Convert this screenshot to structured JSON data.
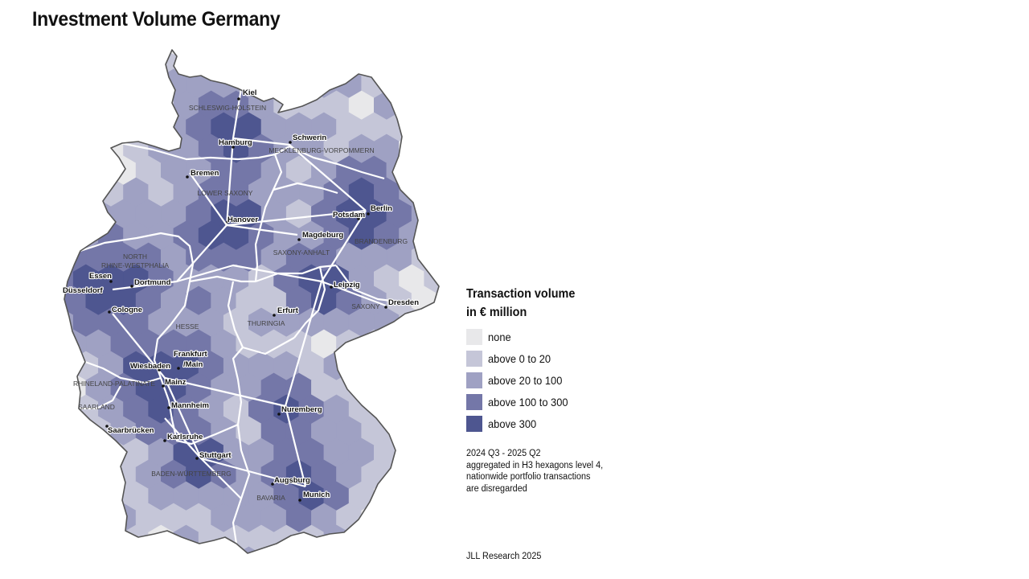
{
  "title": "Investment Volume Germany",
  "legend": {
    "title_line1": "Transaction volume",
    "title_line2": "in € million",
    "items": [
      {
        "label": "none",
        "color": "#e8e8ea"
      },
      {
        "label": "above 0 to 20",
        "color": "#c5c6d8"
      },
      {
        "label": "above 20 to 100",
        "color": "#9fa1c3"
      },
      {
        "label": "above 100 to 300",
        "color": "#7477a8"
      },
      {
        "label": "above 300",
        "color": "#4e5690"
      }
    ]
  },
  "note": {
    "line1": "2024 Q3 - 2025 Q2",
    "line2": "aggregated in H3 hexagons level 4,",
    "line3": "nationwide portfolio transactions",
    "line4": "are disregarded"
  },
  "source": "JLL Research 2025",
  "map": {
    "cities": [
      {
        "id": "kiel",
        "name": "Kiel"
      },
      {
        "id": "hamburg",
        "name": "Hamburg"
      },
      {
        "id": "schwerin",
        "name": "Schwerin"
      },
      {
        "id": "bremen",
        "name": "Bremen"
      },
      {
        "id": "hanover",
        "name": "Hanover"
      },
      {
        "id": "berlin",
        "name": "Berlin"
      },
      {
        "id": "potsdam",
        "name": "Potsdam"
      },
      {
        "id": "magdeburg",
        "name": "Magdeburg"
      },
      {
        "id": "essen",
        "name": "Essen"
      },
      {
        "id": "dortmund",
        "name": "Dortmund"
      },
      {
        "id": "dusseldorf",
        "name": "Düsseldorf"
      },
      {
        "id": "cologne",
        "name": "Cologne"
      },
      {
        "id": "leipzig",
        "name": "Leipzig"
      },
      {
        "id": "dresden",
        "name": "Dresden"
      },
      {
        "id": "erfurt",
        "name": "Erfurt"
      },
      {
        "id": "frankfurt1",
        "name": "Frankfurt"
      },
      {
        "id": "frankfurt2",
        "name": "/Main"
      },
      {
        "id": "wiesbaden",
        "name": "Wiesbaden"
      },
      {
        "id": "mainz",
        "name": "Mainz"
      },
      {
        "id": "mannheim",
        "name": "Mannheim"
      },
      {
        "id": "saarbrucken",
        "name": "Saarbrücken"
      },
      {
        "id": "karlsruhe",
        "name": "Karlsruhe"
      },
      {
        "id": "stuttgart",
        "name": "Stuttgart"
      },
      {
        "id": "nuremberg",
        "name": "Nuremberg"
      },
      {
        "id": "augsburg",
        "name": "Augsburg"
      },
      {
        "id": "munich",
        "name": "Munich"
      }
    ],
    "regions": [
      {
        "id": "sh",
        "name": "SCHLESWIG-HOLSTEIN"
      },
      {
        "id": "mv",
        "name": "MECKLENBURG-VORPOMMERN"
      },
      {
        "id": "ls",
        "name": "LOWER SAXONY"
      },
      {
        "id": "bb",
        "name": "BRANDENBURG"
      },
      {
        "id": "nrw1",
        "name": "NORTH"
      },
      {
        "id": "nrw2",
        "name": "RHINE-WESTPHALIA"
      },
      {
        "id": "sa",
        "name": "SAXONY-ANHALT"
      },
      {
        "id": "sx",
        "name": "SAXONY"
      },
      {
        "id": "th",
        "name": "THURINGIA"
      },
      {
        "id": "he",
        "name": "HESSE"
      },
      {
        "id": "rp",
        "name": "RHINELAND-PALATINATE"
      },
      {
        "id": "sl",
        "name": "SAARLAND"
      },
      {
        "id": "bw",
        "name": "BADEN-WÜRTTEMBERG"
      },
      {
        "id": "by",
        "name": "BAVARIA"
      }
    ]
  }
}
